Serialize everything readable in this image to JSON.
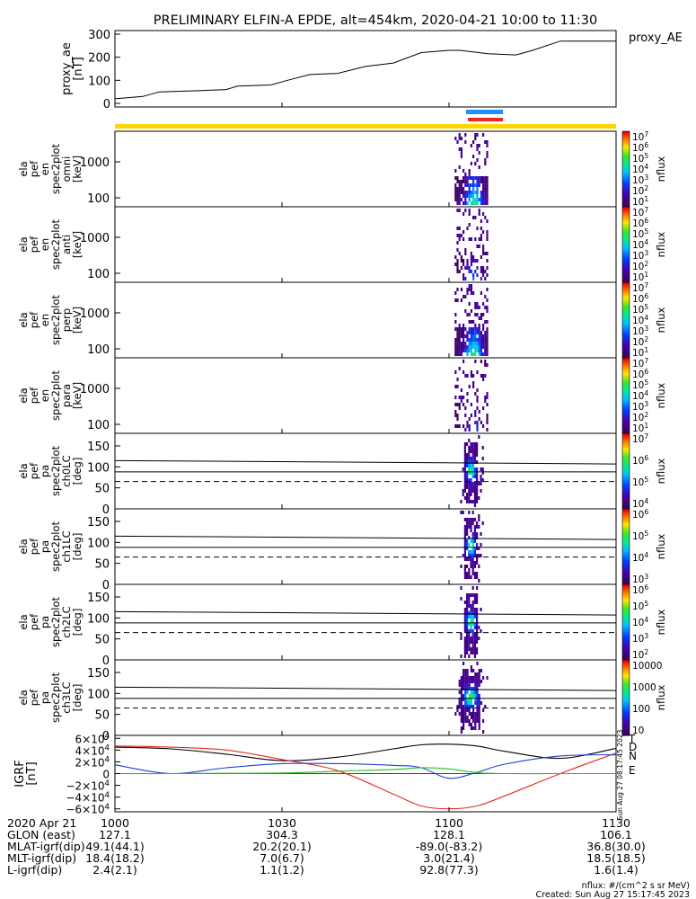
{
  "title": "PRELIMINARY ELFIN-A EPDE, alt=454km, 2020-04-21 10:00 to 11:30",
  "colors": {
    "black": "#000000",
    "yellow": "#ffd700",
    "blue": "#1e90ff",
    "red": "#e8291c",
    "green": "#22c01c",
    "grf_d": "#e8291c",
    "grf_n": "#1f3fd6",
    "grf_e": "#22c01c"
  },
  "chart_data": [
    {
      "type": "line",
      "panel": "proxy_ae",
      "ylabel": [
        "proxy_ae",
        "[nT]"
      ],
      "legend": "proxy_AE",
      "yticks": [
        "300",
        "200",
        "100",
        "0"
      ],
      "ylim": [
        0,
        300
      ],
      "x_minutes": [
        0,
        5,
        8,
        15,
        20,
        22,
        28,
        31,
        35,
        40,
        45,
        50,
        55,
        60,
        62,
        67,
        72,
        75,
        80,
        85,
        90
      ],
      "values": [
        20,
        30,
        50,
        55,
        60,
        75,
        80,
        100,
        125,
        130,
        160,
        175,
        220,
        230,
        230,
        215,
        210,
        230,
        270,
        270,
        270
      ]
    },
    {
      "type": "heatmap",
      "panel": "spec2plot_omni",
      "ylabel": [
        "ela",
        "pef",
        "en",
        "spec2plot",
        "omni",
        "[keV]"
      ],
      "yticks": [
        "1000",
        "100"
      ],
      "colorbar_label": "nflux",
      "colorbar_ticks": [
        "10^7",
        "10^6",
        "10^5",
        "10^4",
        "10^3",
        "10^2",
        "10^1"
      ],
      "active_interval_minutes": [
        61,
        67
      ]
    },
    {
      "type": "heatmap",
      "panel": "spec2plot_anti",
      "ylabel": [
        "ela",
        "pef",
        "en",
        "spec2plot",
        "anti",
        "[keV]"
      ],
      "yticks": [
        "1000",
        "100"
      ],
      "colorbar_label": "nflux",
      "colorbar_ticks": [
        "10^7",
        "10^6",
        "10^5",
        "10^4",
        "10^3",
        "10^2",
        "10^1"
      ],
      "active_interval_minutes": [
        61,
        67
      ]
    },
    {
      "type": "heatmap",
      "panel": "spec2plot_perp",
      "ylabel": [
        "ela",
        "pef",
        "en",
        "spec2plot",
        "perp",
        "[keV]"
      ],
      "yticks": [
        "1000",
        "100"
      ],
      "colorbar_label": "nflux",
      "colorbar_ticks": [
        "10^7",
        "10^6",
        "10^5",
        "10^4",
        "10^3",
        "10^2",
        "10^1"
      ],
      "active_interval_minutes": [
        61,
        67
      ]
    },
    {
      "type": "heatmap",
      "panel": "spec2plot_para",
      "ylabel": [
        "ela",
        "pef",
        "en",
        "spec2plot",
        "para",
        "[keV]"
      ],
      "yticks": [
        "1000",
        "100"
      ],
      "colorbar_label": "nflux",
      "colorbar_ticks": [
        "10^7",
        "10^6",
        "10^5",
        "10^4",
        "10^3",
        "10^2",
        "10^1"
      ],
      "active_interval_minutes": [
        61,
        67
      ]
    },
    {
      "type": "heatmap",
      "panel": "spec2plot_ch0LC",
      "ylabel": [
        "ela",
        "pef",
        "pa",
        "spec2plot",
        "ch0LC",
        "[deg]"
      ],
      "yticks": [
        "150",
        "100",
        "50",
        "0"
      ],
      "ylim": [
        0,
        180
      ],
      "colorbar_label": "nflux",
      "colorbar_ticks": [
        "10^7",
        "10^6",
        "10^5",
        "10^4"
      ],
      "active_interval_minutes": [
        62,
        66
      ]
    },
    {
      "type": "heatmap",
      "panel": "spec2plot_ch1LC",
      "ylabel": [
        "ela",
        "pef",
        "pa",
        "spec2plot",
        "ch1LC",
        "[deg]"
      ],
      "yticks": [
        "150",
        "100",
        "50",
        "0"
      ],
      "ylim": [
        0,
        180
      ],
      "colorbar_label": "nflux",
      "colorbar_ticks": [
        "10^6",
        "10^5",
        "10^4",
        "10^3"
      ],
      "active_interval_minutes": [
        62,
        66
      ]
    },
    {
      "type": "heatmap",
      "panel": "spec2plot_ch2LC",
      "ylabel": [
        "ela",
        "pef",
        "pa",
        "spec2plot",
        "ch2LC",
        "[deg]"
      ],
      "yticks": [
        "150",
        "100",
        "50",
        "0"
      ],
      "ylim": [
        0,
        180
      ],
      "colorbar_label": "nflux",
      "colorbar_ticks": [
        "10^6",
        "10^5",
        "10^4",
        "10^3",
        "10^2"
      ],
      "active_interval_minutes": [
        62,
        66
      ]
    },
    {
      "type": "heatmap",
      "panel": "spec2plot_ch3LC",
      "ylabel": [
        "ela",
        "pef",
        "pa",
        "spec2plot",
        "ch3LC",
        "[deg]"
      ],
      "yticks": [
        "150",
        "100",
        "50",
        "0"
      ],
      "ylim": [
        0,
        180
      ],
      "colorbar_label": "nflux",
      "colorbar_ticks": [
        "10000",
        "1000",
        "100",
        "10"
      ],
      "active_interval_minutes": [
        61,
        67
      ]
    },
    {
      "type": "line",
      "panel": "IGRF",
      "ylabel": [
        "IGRF",
        "[nT]"
      ],
      "yticks": [
        "6×10^4",
        "4×10^4",
        "2×10^4",
        "0",
        "−2×10^4",
        "−4×10^4",
        "−6×10^4"
      ],
      "ylim": [
        -65000,
        65000
      ],
      "legend": [
        "T",
        "D",
        "N",
        "E"
      ],
      "x_minutes": [
        0,
        10,
        20,
        30,
        40,
        50,
        55,
        60,
        65,
        70,
        80,
        90
      ],
      "series": [
        {
          "name": "T",
          "values": [
            45000,
            42000,
            33000,
            22000,
            28000,
            42000,
            49000,
            50000,
            47000,
            38000,
            26000,
            43000
          ]
        },
        {
          "name": "D",
          "values": [
            47000,
            45000,
            40000,
            24000,
            5000,
            -35000,
            -55000,
            -60000,
            -55000,
            -38000,
            0,
            35000
          ]
        },
        {
          "name": "N",
          "values": [
            15000,
            0,
            10000,
            17000,
            17000,
            14000,
            10000,
            -8000,
            2000,
            16000,
            30000,
            32000
          ]
        },
        {
          "name": "E",
          "values": [
            0,
            0,
            500,
            1000,
            4000,
            7000,
            10000,
            8000,
            1500,
            0,
            0,
            0
          ]
        }
      ]
    }
  ],
  "xaxis": {
    "tick_labels": [
      "1000",
      "1030",
      "1100",
      "1130"
    ],
    "tick_minutes": [
      0,
      30,
      60,
      90
    ],
    "row_labels": [
      "2020 Apr 21",
      "GLON (east)",
      "MLAT-igrf(dip)",
      "MLT-igrf(dip)",
      "L-igrf(dip)"
    ],
    "rows": [
      [
        "",
        "",
        "",
        ""
      ],
      [
        "127.1",
        "304.3",
        "128.1",
        "106.1"
      ],
      [
        "49.1(44.1)",
        "20.2(20.1)",
        "-89.0(-83.2)",
        "36.8(30.0)"
      ],
      [
        "18.4(18.2)",
        "7.0(6.7)",
        "3.0(21.4)",
        "18.5(18.5)"
      ],
      [
        "2.4(2.1)",
        "1.1(1.2)",
        "92.8(77.3)",
        "1.6(1.4)"
      ]
    ]
  },
  "footer": {
    "units": "nflux: #/(cm^2 s sr MeV)",
    "created": "Created: Sun Aug 27 15:17:45 2023",
    "side_stamp": "Sun Aug 27 08:17:45 2023"
  }
}
